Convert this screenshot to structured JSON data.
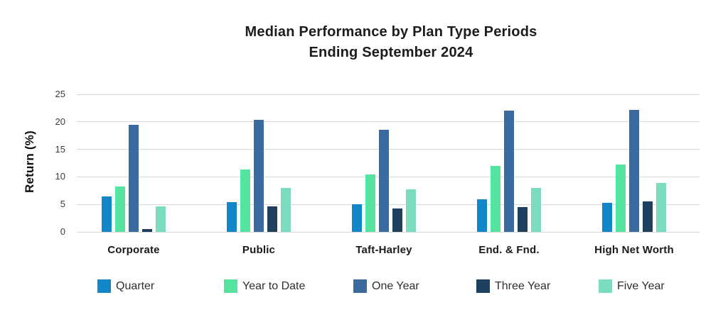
{
  "chart_data": {
    "type": "bar",
    "title": "Median Performance by Plan Type Periods",
    "subtitle": "Ending September 2024",
    "ylabel": "Return (%)",
    "ylim": [
      0,
      25
    ],
    "yticks": [
      0,
      5,
      10,
      15,
      20,
      25
    ],
    "grid": true,
    "legend_position": "bottom",
    "categories": [
      "Corporate",
      "Public",
      "Taft-Harley",
      "End. & Fnd.",
      "High Net Worth"
    ],
    "series": [
      {
        "name": "Quarter",
        "color": "#1386c9",
        "values": [
          6.5,
          5.4,
          5.0,
          5.9,
          5.3
        ]
      },
      {
        "name": "Year to Date",
        "color": "#55e3a0",
        "values": [
          8.2,
          11.3,
          10.5,
          12.0,
          12.3
        ]
      },
      {
        "name": "One Year",
        "color": "#3a6a9e",
        "values": [
          19.4,
          20.4,
          18.5,
          22.0,
          22.2
        ]
      },
      {
        "name": "Three Year",
        "color": "#1e3f5e",
        "values": [
          0.5,
          4.7,
          4.2,
          4.5,
          5.5
        ]
      },
      {
        "name": "Five Year",
        "color": "#7cdcc0",
        "values": [
          4.7,
          8.0,
          7.7,
          8.0,
          8.9
        ]
      }
    ]
  }
}
